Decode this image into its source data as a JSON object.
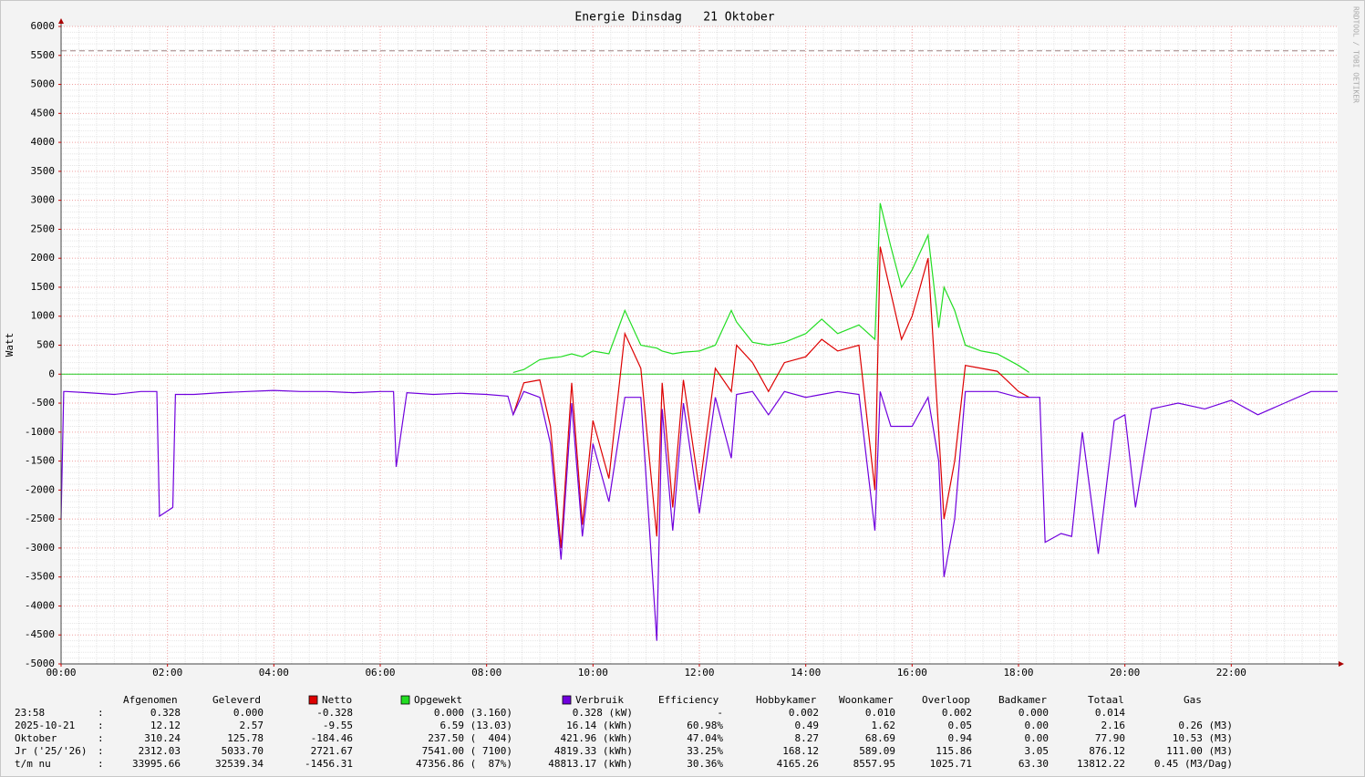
{
  "chart_data": {
    "type": "line",
    "title": "Energie Dinsdag   21 Oktober",
    "ylabel": "Watt",
    "watermark": "RRDTOOL / TOBI OETIKER",
    "x": [
      0,
      0.05,
      0.1,
      0.5,
      1,
      1.5,
      1.8,
      1.85,
      2.1,
      2.15,
      2.5,
      3,
      3.5,
      4,
      4.5,
      5,
      5.5,
      6,
      6.25,
      6.3,
      6.5,
      7,
      7.5,
      8,
      8.4,
      8.5,
      8.7,
      9,
      9.2,
      9.4,
      9.6,
      9.8,
      10,
      10.3,
      10.6,
      10.9,
      11.2,
      11.3,
      11.5,
      11.7,
      12,
      12.3,
      12.6,
      12.7,
      13,
      13.3,
      13.6,
      14,
      14.3,
      14.6,
      15,
      15.3,
      15.4,
      15.6,
      15.8,
      16,
      16.3,
      16.5,
      16.6,
      16.8,
      17,
      17.3,
      17.6,
      18,
      18.2,
      18.4,
      18.5,
      18.8,
      19,
      19.2,
      19.5,
      19.8,
      20,
      20.2,
      20.5,
      21,
      21.5,
      22,
      22.5,
      23,
      23.5,
      24
    ],
    "series": [
      {
        "name": "Opgewekt",
        "color": "#22dd22",
        "values": [
          null,
          null,
          null,
          null,
          null,
          null,
          null,
          null,
          null,
          null,
          null,
          null,
          null,
          null,
          null,
          null,
          null,
          null,
          null,
          null,
          null,
          null,
          null,
          null,
          null,
          30,
          80,
          250,
          280,
          300,
          350,
          300,
          400,
          350,
          1100,
          500,
          450,
          400,
          350,
          380,
          400,
          500,
          1100,
          900,
          550,
          500,
          550,
          700,
          950,
          700,
          850,
          600,
          2950,
          2200,
          1500,
          1800,
          2400,
          800,
          1500,
          1100,
          500,
          400,
          350,
          150,
          30,
          null,
          null,
          null,
          null,
          null,
          null,
          null,
          null,
          null,
          null,
          null,
          null,
          null,
          null,
          null,
          null,
          null
        ]
      },
      {
        "name": "Netto",
        "color": "#dd0000",
        "values": [
          null,
          null,
          null,
          null,
          null,
          null,
          null,
          null,
          null,
          null,
          null,
          null,
          null,
          null,
          null,
          null,
          null,
          null,
          null,
          null,
          null,
          null,
          null,
          null,
          null,
          -700,
          -150,
          -100,
          -900,
          -3000,
          -150,
          -2600,
          -800,
          -1800,
          700,
          100,
          -2800,
          -150,
          -2300,
          -100,
          -2000,
          100,
          -300,
          500,
          200,
          -300,
          200,
          300,
          600,
          400,
          500,
          -2000,
          2200,
          1400,
          600,
          1000,
          2000,
          -1000,
          -2500,
          -1500,
          150,
          100,
          50,
          -300,
          -400,
          null,
          null,
          null,
          null,
          null,
          null,
          null,
          null,
          null,
          null,
          null,
          null,
          null,
          null,
          null,
          null,
          null
        ]
      },
      {
        "name": "Verbruik",
        "color": "#7000dd",
        "values": [
          -2500,
          -300,
          -300,
          -320,
          -350,
          -300,
          -300,
          -2450,
          -2300,
          -350,
          -350,
          -320,
          -300,
          -280,
          -300,
          -300,
          -320,
          -300,
          -300,
          -1600,
          -320,
          -350,
          -330,
          -350,
          -380,
          -700,
          -300,
          -400,
          -1200,
          -3200,
          -500,
          -2800,
          -1200,
          -2200,
          -400,
          -400,
          -4600,
          -600,
          -2700,
          -500,
          -2400,
          -400,
          -1450,
          -350,
          -300,
          -700,
          -300,
          -400,
          -350,
          -300,
          -350,
          -2700,
          -300,
          -900,
          -900,
          -900,
          -400,
          -1500,
          -3500,
          -2500,
          -300,
          -300,
          -300,
          -400,
          -400,
          -400,
          -2900,
          -2750,
          -2800,
          -1000,
          -3100,
          -800,
          -700,
          -2300,
          -600,
          -500,
          -600,
          -450,
          -700,
          -500,
          -300,
          -300
        ]
      }
    ],
    "xlim": [
      0,
      24
    ],
    "xticks": [
      {
        "value": 0,
        "label": "00:00"
      },
      {
        "value": 2,
        "label": "02:00"
      },
      {
        "value": 4,
        "label": "04:00"
      },
      {
        "value": 6,
        "label": "06:00"
      },
      {
        "value": 8,
        "label": "08:00"
      },
      {
        "value": 10,
        "label": "10:00"
      },
      {
        "value": 12,
        "label": "12:00"
      },
      {
        "value": 14,
        "label": "14:00"
      },
      {
        "value": 16,
        "label": "16:00"
      },
      {
        "value": 18,
        "label": "18:00"
      },
      {
        "value": 20,
        "label": "20:00"
      },
      {
        "value": 22,
        "label": "22:00"
      }
    ],
    "ylim": [
      -5000,
      6000
    ],
    "yticks": [
      -5000,
      -4500,
      -4000,
      -3500,
      -3000,
      -2500,
      -2000,
      -1500,
      -1000,
      -500,
      0,
      500,
      1000,
      1500,
      2000,
      2500,
      3000,
      3500,
      4000,
      4500,
      5000,
      5500,
      6000
    ],
    "grid": true,
    "zero_line_color": "#22cc22",
    "limit_line": 5580,
    "legend_table": {
      "columns_left": [
        "Afgenomen",
        "Geleverd"
      ],
      "columns_right": [
        "Efficiency",
        "Hobbykamer",
        "Woonkamer",
        "Overloop",
        "Badkamer",
        "Totaal",
        "Gas"
      ],
      "separator": ":",
      "rows": [
        {
          "label": "23:58",
          "cells": [
            "0.328",
            "0.000",
            "-0.328",
            "0.000 (3.160)",
            "0.328 (kW)",
            "-",
            "0.002",
            "0.010",
            "0.002",
            "0.000",
            "0.014"
          ]
        },
        {
          "label": "2025-10-21",
          "cells": [
            "12.12",
            "2.57",
            "-9.55",
            "6.59 (13.03)",
            "16.14 (kWh)",
            "60.98%",
            "0.49",
            "1.62",
            "0.05",
            "0.00",
            "2.16",
            "0.26 (M3)"
          ]
        },
        {
          "label": "Oktober",
          "cells": [
            "310.24",
            "125.78",
            "-184.46",
            "237.50 (  404)",
            "421.96 (kWh)",
            "47.04%",
            "8.27",
            "68.69",
            "0.94",
            "0.00",
            "77.90",
            "10.53 (M3)"
          ]
        },
        {
          "label": "Jr ('25/'26)",
          "cells": [
            "2312.03",
            "5033.70",
            "2721.67",
            "7541.00 ( 7100)",
            "4819.33 (kWh)",
            "33.25%",
            "168.12",
            "589.09",
            "115.86",
            "3.05",
            "876.12",
            "111.00 (M3)"
          ]
        },
        {
          "label": "t/m nu",
          "cells": [
            "33995.66",
            "32539.34",
            "-1456.31",
            "47356.86 (  87%)",
            "48813.17 (kWh)",
            "30.36%",
            "4165.26",
            "8557.95",
            "1025.71",
            "63.30",
            "13812.22",
            "0.45 (M3/Dag)"
          ]
        }
      ]
    }
  }
}
